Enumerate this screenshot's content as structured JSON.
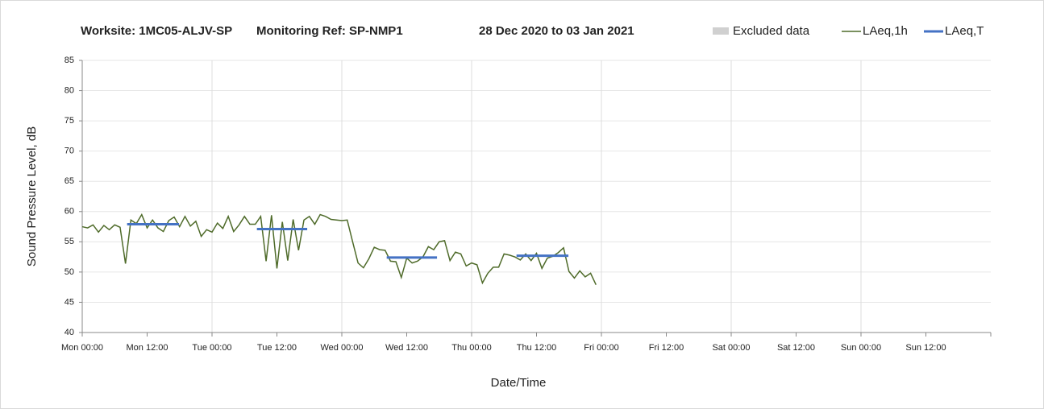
{
  "chart_data": {
    "type": "line",
    "title": [
      "Worksite: 1MC05-ALJV-SP",
      "Monitoring Ref: SP-NMP1",
      "28 Dec 2020 to 03 Jan 2021"
    ],
    "y_label": "Sound Pressure Level, dB",
    "x_label": "Date/Time",
    "xlim": [
      0,
      168
    ],
    "xticks": [
      {
        "value": 0,
        "label": "Mon 00:00"
      },
      {
        "value": 12,
        "label": "Mon 12:00"
      },
      {
        "value": 24,
        "label": "Tue 00:00"
      },
      {
        "value": 36,
        "label": "Tue 12:00"
      },
      {
        "value": 48,
        "label": "Wed 00:00"
      },
      {
        "value": 60,
        "label": "Wed 12:00"
      },
      {
        "value": 72,
        "label": "Thu 00:00"
      },
      {
        "value": 84,
        "label": "Thu 12:00"
      },
      {
        "value": 96,
        "label": "Fri 00:00"
      },
      {
        "value": 108,
        "label": "Fri 12:00"
      },
      {
        "value": 120,
        "label": "Sat 00:00"
      },
      {
        "value": 132,
        "label": "Sat 12:00"
      },
      {
        "value": 144,
        "label": "Sun 00:00"
      },
      {
        "value": 156,
        "label": "Sun 12:00"
      }
    ],
    "ylim": [
      40,
      85
    ],
    "yticks": [
      40,
      45,
      50,
      55,
      60,
      65,
      70,
      75,
      80,
      85
    ],
    "grid": true,
    "series": [
      {
        "name": "Excluded data",
        "color": "#d0d0d0"
      },
      {
        "name": "LAeq,1h",
        "color": "#4f6b2a",
        "x": [
          0,
          1,
          2,
          3,
          4,
          5,
          6,
          7,
          8,
          9,
          10,
          11,
          12,
          13,
          14,
          15,
          16,
          17,
          18,
          19,
          20,
          21,
          22,
          23,
          24,
          25,
          26,
          27,
          28,
          29,
          30,
          31,
          32,
          33,
          34,
          35,
          36,
          37,
          38,
          39,
          40,
          41,
          42,
          43,
          44,
          45,
          46,
          47,
          48,
          49,
          50,
          51,
          52,
          53,
          54,
          55,
          56,
          57,
          58,
          59,
          60,
          61,
          62,
          63,
          64,
          65,
          66,
          67,
          68,
          69,
          70,
          71,
          72,
          73,
          74,
          75,
          76,
          77,
          78,
          79,
          80,
          81,
          82,
          83,
          84,
          85,
          86,
          87,
          88,
          89,
          90,
          91,
          92,
          93,
          94,
          95
        ],
        "values": [
          57.5,
          57.3,
          57.8,
          56.6,
          57.7,
          57.0,
          57.8,
          57.4,
          51.4,
          58.6,
          58.0,
          59.5,
          57.3,
          58.6,
          57.3,
          56.7,
          58.5,
          59.1,
          57.5,
          59.2,
          57.6,
          58.4,
          55.9,
          57.0,
          56.6,
          58.1,
          57.2,
          59.2,
          56.7,
          57.8,
          59.2,
          57.9,
          57.9,
          59.2,
          51.8,
          59.4,
          50.6,
          58.3,
          51.9,
          58.7,
          53.6,
          58.6,
          59.2,
          57.9,
          59.5,
          59.2,
          58.7,
          58.6,
          58.5,
          58.6,
          55.0,
          51.5,
          50.7,
          52.2,
          54.1,
          53.7,
          53.6,
          51.8,
          51.7,
          49.1,
          52.3,
          51.5,
          51.8,
          52.5,
          54.2,
          53.7,
          55.0,
          55.2,
          51.9,
          53.3,
          53.0,
          51.0,
          51.5,
          51.2,
          48.2,
          49.8,
          50.8,
          50.8,
          53.0,
          52.8,
          52.5,
          52.0,
          53.0,
          51.9,
          53.1,
          50.6,
          52.3,
          52.6,
          53.2,
          54.0,
          50.1,
          49.0,
          50.2,
          49.2,
          49.8,
          47.9
        ]
      },
      {
        "name": "LAeq,T",
        "color": "#4472c4",
        "x": [
          8.3,
          17.9,
          null,
          32.3,
          41.6,
          null,
          56.3,
          65.6,
          null,
          80.3,
          89.9
        ],
        "values": [
          57.9,
          57.9,
          null,
          57.1,
          57.1,
          null,
          52.4,
          52.4,
          null,
          52.7,
          52.7
        ]
      }
    ]
  }
}
